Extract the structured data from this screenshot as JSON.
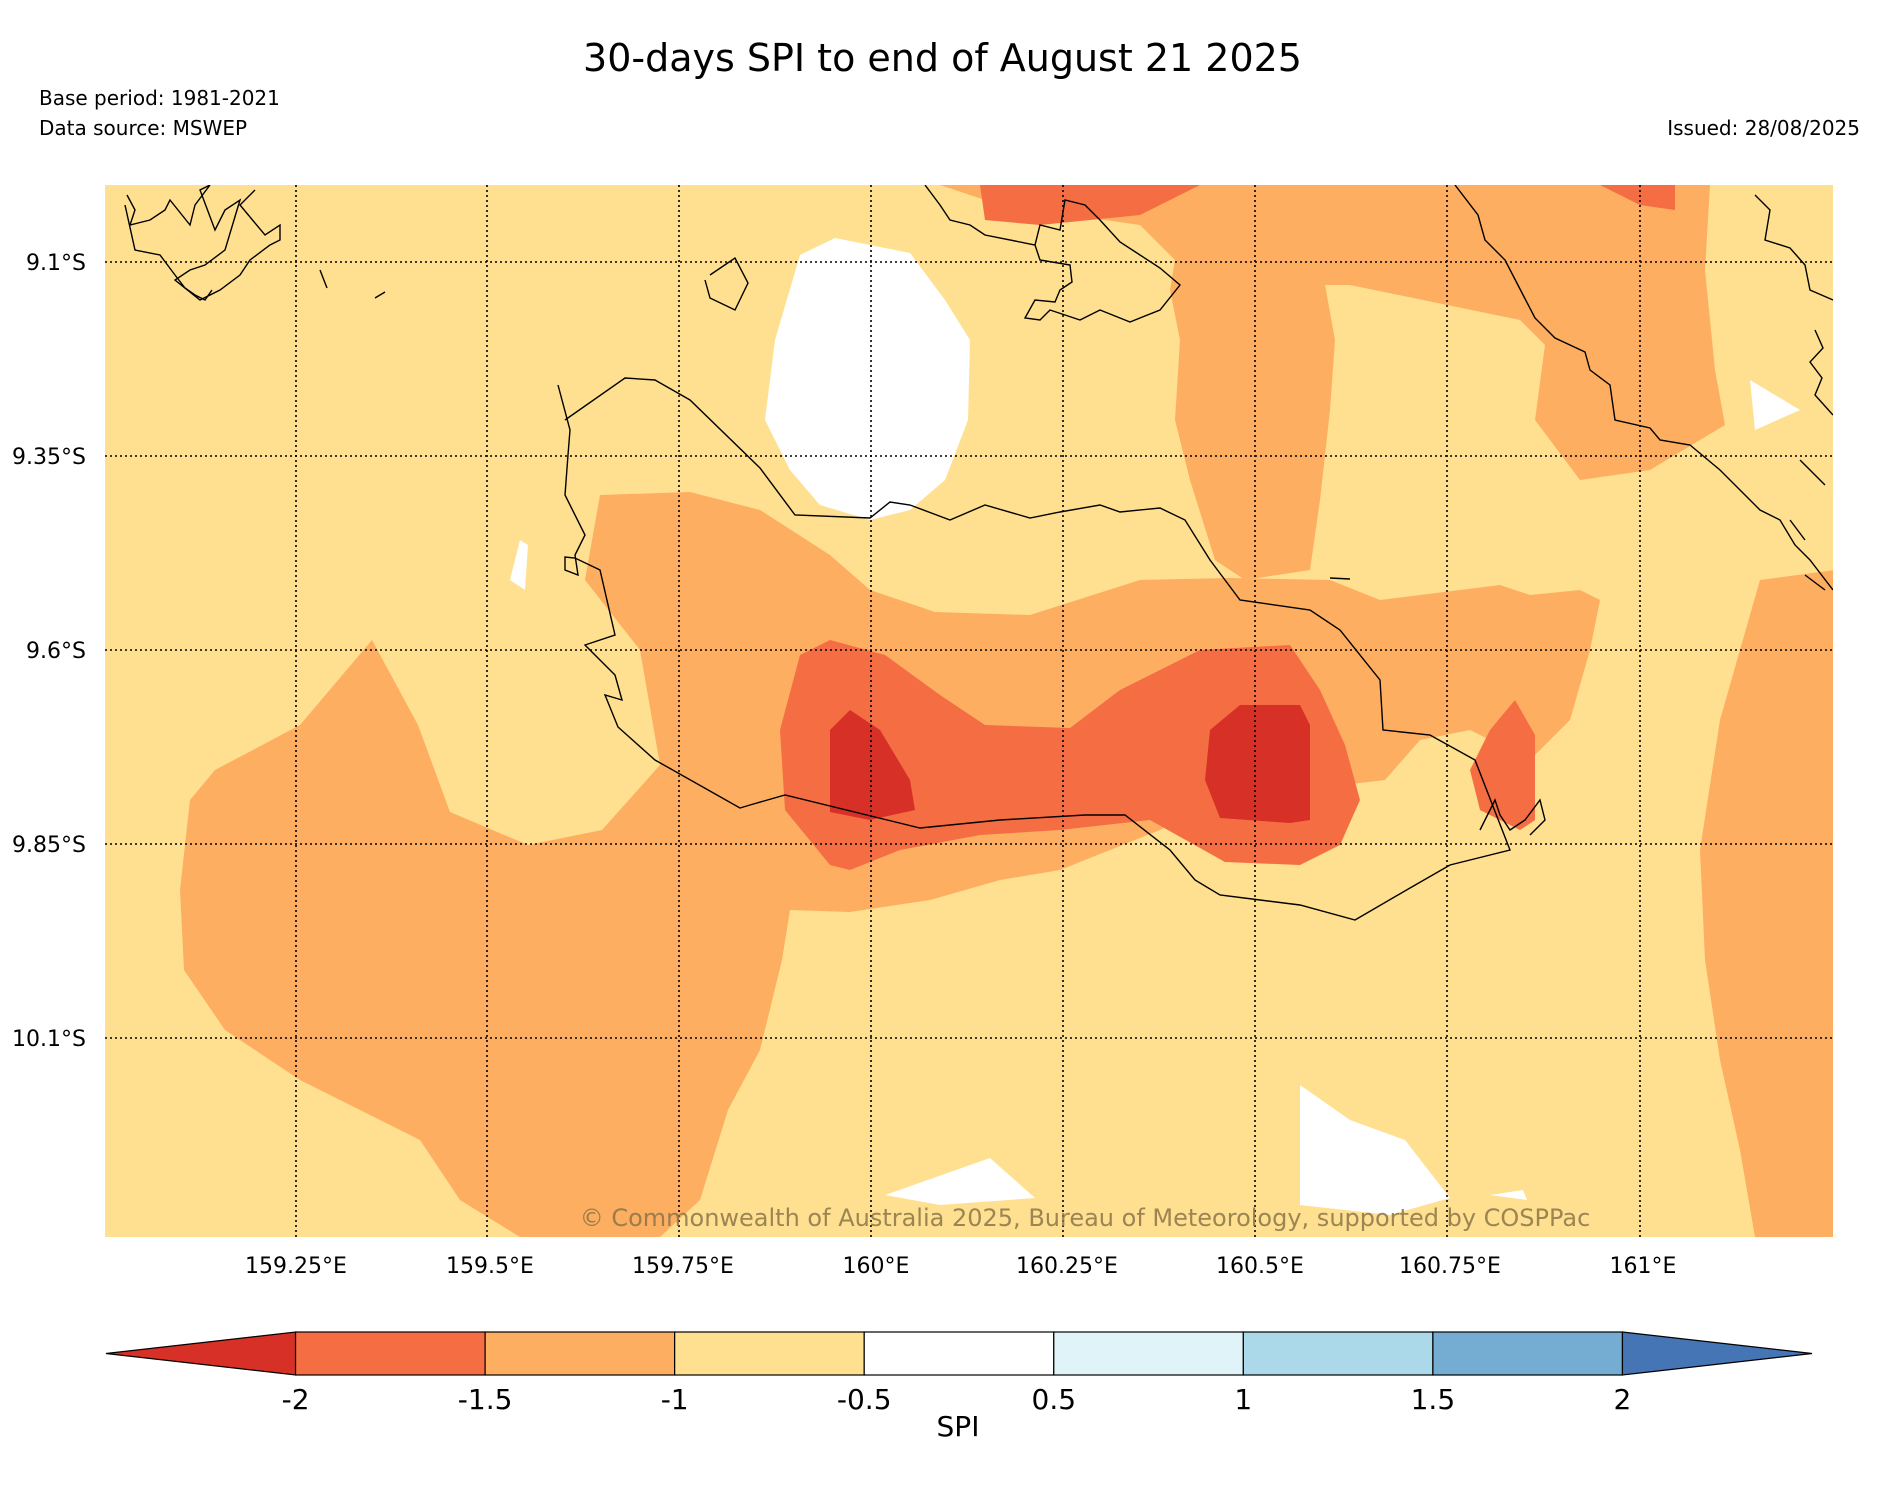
{
  "title": "30-days SPI to end of August 21 2025",
  "base_period": "Base period: 1981-2021",
  "data_source": "Data source: MSWEP",
  "issued": "Issued: 28/08/2025",
  "copyright": "© Commonwealth of Australia 2025, Bureau of Meteorology, supported by COSPPac",
  "map": {
    "lat_labels": [
      "9.1°S",
      "9.35°S",
      "9.6°S",
      "9.85°S",
      "10.1°S"
    ],
    "lon_labels": [
      "159.25°E",
      "159.5°E",
      "159.75°E",
      "160°E",
      "160.25°E",
      "160.5°E",
      "160.75°E",
      "161°E"
    ]
  },
  "colorbar": {
    "label": "SPI",
    "ticks": [
      "-2",
      "-1.5",
      "-1",
      "-0.5",
      "0.5",
      "1",
      "1.5",
      "2"
    ],
    "colors": [
      "#d73027",
      "#f46d43",
      "#fdae61",
      "#fee090",
      "#ffffff",
      "#e0f3f8",
      "#abd9e9",
      "#74add1",
      "#4575b4"
    ]
  }
}
